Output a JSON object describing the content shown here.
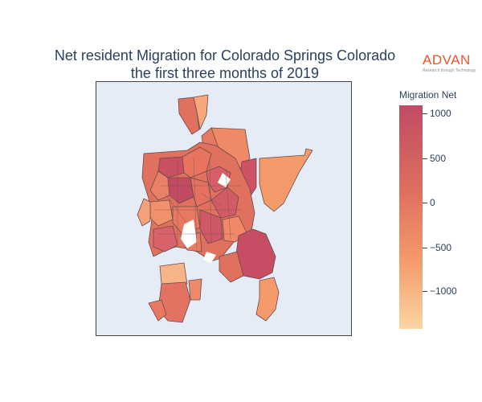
{
  "title": {
    "line1": "Net resident Migration for Colorado Springs Colorado",
    "line2": "the first three months of 2019"
  },
  "logo": {
    "name": "ADVAN",
    "tagline": "Research through Technology"
  },
  "colorbar": {
    "title": "Migration Net",
    "ticks": [
      "1000",
      "500",
      "0",
      "−500",
      "−1000"
    ],
    "range": [
      -1400,
      1100
    ],
    "colors": [
      "#fbd6a3",
      "#f59b6b",
      "#e0715f",
      "#c14a63"
    ]
  }
}
